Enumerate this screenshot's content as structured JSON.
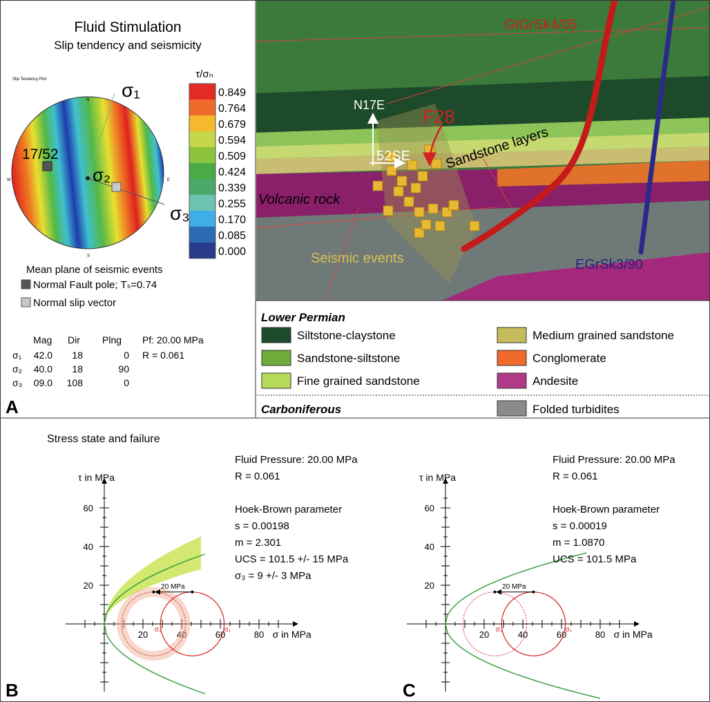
{
  "panel_a": {
    "label": "A",
    "title": "Fluid Stimulation",
    "subtitle": "Slip tendency and seismicity",
    "plot_caption": "Slip Tendency Plot",
    "compass": [
      "N",
      "E",
      "S",
      "W"
    ],
    "sigma_labels": [
      "σ₁",
      "σ₂",
      "σ₃"
    ],
    "pole_label": "17/52",
    "colorbar": {
      "title": "τ/σₙ",
      "labels": [
        "0.849",
        "0.764",
        "0.679",
        "0.594",
        "0.509",
        "0.424",
        "0.339",
        "0.255",
        "0.170",
        "0.085",
        "0.000"
      ],
      "colors": [
        "#e42a26",
        "#ee6a2a",
        "#f6b82c",
        "#c6d84a",
        "#8cc43e",
        "#4aaa46",
        "#4aa868",
        "#6ec2b2",
        "#3eaee6",
        "#2c6ab2",
        "#283a8a"
      ]
    },
    "legend_title": "Mean plane of seismic events",
    "legend_items": [
      {
        "label": "Normal Fault pole; Tₛ=0.74",
        "color": "#555555"
      },
      {
        "label": "Normal slip vector",
        "color": "#c8c8c8"
      }
    ],
    "table": {
      "header": [
        "Mag",
        "Dir",
        "Plng"
      ],
      "rows": [
        [
          "σ₁",
          "42.0",
          "18",
          "0"
        ],
        [
          "σ₂",
          "40.0",
          "18",
          "90"
        ],
        [
          "σ₃",
          "09.0",
          "108",
          "0"
        ]
      ]
    },
    "notes": [
      "Pf: 20.00 MPa",
      "R = 0.061"
    ]
  },
  "model_3d": {
    "labels": [
      "GtGrSk4/05",
      "N17E",
      "F28",
      "Sandstone layers",
      "52SE",
      "Volcanic rock",
      "Seismic events",
      "EGrSk3/90"
    ]
  },
  "legend": {
    "groups": [
      {
        "title": "Lower Permian",
        "items": [
          {
            "label": "Siltstone-claystone",
            "color": "#1d4a2a"
          },
          {
            "label": "Sandstone-siltstone",
            "color": "#6eac3c"
          },
          {
            "label": "Fine grained sandstone",
            "color": "#b6da5a"
          },
          {
            "label": "Medium grained sandstone",
            "color": "#c6bb5a"
          },
          {
            "label": "Conglomerate",
            "color": "#f06a2c"
          },
          {
            "label": "Andesite",
            "color": "#b03a88"
          }
        ]
      },
      {
        "title": "Carboniferous",
        "items": [
          {
            "label": "Folded turbidites",
            "color": "#8a8a8a"
          }
        ]
      }
    ]
  },
  "panel_bc": {
    "title": "Stress state and failure",
    "panels": [
      {
        "label": "B",
        "y_label": "τ in MPa",
        "x_label": "σ in MPa",
        "yticks": [
          20,
          40,
          60
        ],
        "xticks": [
          20,
          40,
          60,
          80
        ],
        "shift_label": "20 MPa",
        "circle_labels": [
          "σ₃",
          "σ₁"
        ],
        "text": [
          "Fluid Pressure: 20.00 MPa",
          "R = 0.061",
          "Hoek-Brown parameter",
          "s = 0.00198",
          "m = 2.301",
          "UCS = 101.5 +/- 15 MPa",
          "σ₃ = 9 +/- 3 MPa"
        ]
      },
      {
        "label": "C",
        "y_label": "τ in MPa",
        "x_label": "σ in MPa",
        "yticks": [
          20,
          40,
          60
        ],
        "xticks": [
          20,
          40,
          60,
          80
        ],
        "shift_label": "20 MPa",
        "circle_labels": [
          "σ₃",
          "σ₁"
        ],
        "text": [
          "Fluid Pressure: 20.00 MPa",
          "R = 0.061",
          "Hoek-Brown parameter",
          "s = 0.00019",
          "m = 1.0870",
          "UCS = 101.5 MPa"
        ]
      }
    ]
  }
}
